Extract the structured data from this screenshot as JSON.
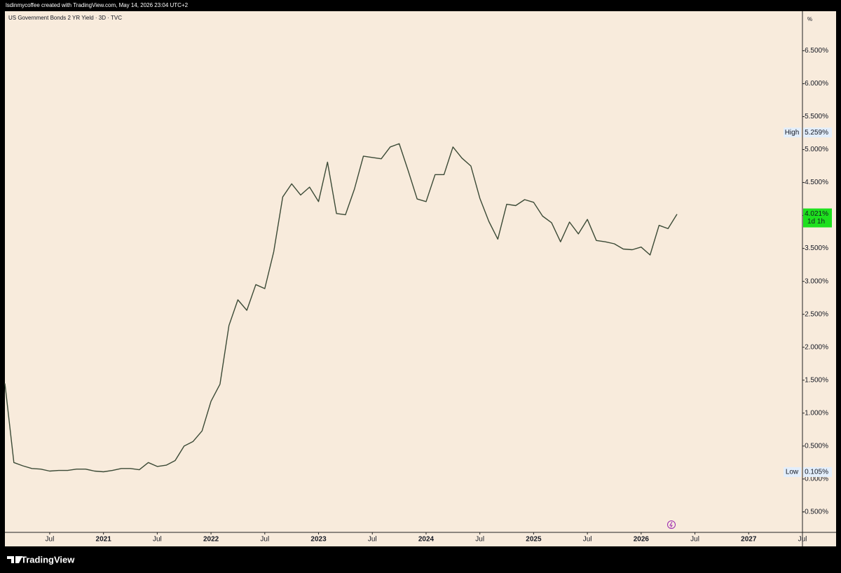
{
  "header": "lsdinmycoffee created with TradingView.com, May 14, 2026 23:04 UTC+2",
  "footer": "TradingView",
  "chart_data": {
    "type": "line",
    "title": "US Government Bonds 2 YR Yield · 3D · TVC",
    "unit_label": "%",
    "color": "#3b4a36",
    "grid": false,
    "x": [
      "2020-02",
      "2020-03",
      "2020-04",
      "2020-05",
      "2020-06",
      "2020-07",
      "2020-08",
      "2020-09",
      "2020-10",
      "2020-11",
      "2020-12",
      "2021-01",
      "2021-02",
      "2021-03",
      "2021-04",
      "2021-05",
      "2021-06",
      "2021-07",
      "2021-08",
      "2021-09",
      "2021-10",
      "2021-11",
      "2021-12",
      "2022-01",
      "2022-02",
      "2022-03",
      "2022-04",
      "2022-05",
      "2022-06",
      "2022-07",
      "2022-08",
      "2022-09",
      "2022-10",
      "2022-11",
      "2022-12",
      "2023-01",
      "2023-02",
      "2023-03",
      "2023-04",
      "2023-05",
      "2023-06",
      "2023-07",
      "2023-08",
      "2023-09",
      "2023-10",
      "2023-11",
      "2023-12",
      "2024-01",
      "2024-02",
      "2024-03",
      "2024-04",
      "2024-05",
      "2024-06",
      "2024-07",
      "2024-08",
      "2024-09",
      "2024-10",
      "2024-11",
      "2024-12",
      "2025-01",
      "2025-02",
      "2025-03",
      "2025-04",
      "2025-05",
      "2025-06",
      "2025-07",
      "2025-08",
      "2025-09",
      "2025-10",
      "2025-11",
      "2025-12",
      "2026-01",
      "2026-02",
      "2026-03",
      "2026-04",
      "2026-05"
    ],
    "values": [
      1.45,
      0.25,
      0.2,
      0.16,
      0.15,
      0.12,
      0.13,
      0.13,
      0.15,
      0.15,
      0.12,
      0.11,
      0.13,
      0.16,
      0.16,
      0.14,
      0.25,
      0.19,
      0.21,
      0.28,
      0.5,
      0.57,
      0.73,
      1.18,
      1.44,
      2.33,
      2.72,
      2.56,
      2.95,
      2.89,
      3.45,
      4.28,
      4.48,
      4.31,
      4.43,
      4.21,
      4.81,
      4.03,
      4.01,
      4.4,
      4.9,
      4.88,
      4.86,
      5.04,
      5.09,
      4.68,
      4.25,
      4.21,
      4.62,
      4.62,
      5.04,
      4.87,
      4.75,
      4.26,
      3.91,
      3.64,
      4.17,
      4.15,
      4.24,
      4.2,
      3.99,
      3.89,
      3.6,
      3.9,
      3.72,
      3.94,
      3.62,
      3.6,
      3.57,
      3.49,
      3.48,
      3.52,
      3.4,
      3.85,
      3.8,
      4.02
    ],
    "xlim": [
      "2020-02",
      "2027-07"
    ],
    "xticks": [
      {
        "value": "2020-07",
        "label": "Jul"
      },
      {
        "value": "2021-01",
        "label": "2021"
      },
      {
        "value": "2021-07",
        "label": "Jul"
      },
      {
        "value": "2022-01",
        "label": "2022"
      },
      {
        "value": "2022-07",
        "label": "Jul"
      },
      {
        "value": "2023-01",
        "label": "2023"
      },
      {
        "value": "2023-07",
        "label": "Jul"
      },
      {
        "value": "2024-01",
        "label": "2024"
      },
      {
        "value": "2024-07",
        "label": "Jul"
      },
      {
        "value": "2025-01",
        "label": "2025"
      },
      {
        "value": "2025-07",
        "label": "Jul"
      },
      {
        "value": "2026-01",
        "label": "2026"
      },
      {
        "value": "2026-07",
        "label": "Jul"
      },
      {
        "value": "2027-01",
        "label": "2027"
      },
      {
        "value": "2027-07",
        "label": "Jul"
      }
    ],
    "ylim": [
      -0.81,
      7.1
    ],
    "yticks": [
      {
        "value": -0.5,
        "label": "-0.500%"
      },
      {
        "value": 0,
        "label": "0.000%"
      },
      {
        "value": 0.5,
        "label": "0.500%"
      },
      {
        "value": 1,
        "label": "1.000%"
      },
      {
        "value": 1.5,
        "label": "1.500%"
      },
      {
        "value": 2,
        "label": "2.000%"
      },
      {
        "value": 2.5,
        "label": "2.500%"
      },
      {
        "value": 3,
        "label": "3.000%"
      },
      {
        "value": 3.5,
        "label": "3.500%"
      },
      {
        "value": 4,
        "label": "4.000%"
      },
      {
        "value": 4.5,
        "label": "4.500%"
      },
      {
        "value": 5,
        "label": "5.000%"
      },
      {
        "value": 5.5,
        "label": "5.500%"
      },
      {
        "value": 6,
        "label": "6.000%"
      },
      {
        "value": 6.5,
        "label": "6.500%"
      }
    ],
    "high_low": [
      {
        "name": "High",
        "value": 5.259,
        "value_label": "5.259%"
      },
      {
        "name": "Low",
        "value": 0.105,
        "value_label": "0.105%"
      }
    ],
    "last": {
      "value": 4.021,
      "value_label": "4.021%",
      "countdown": "1d 1h",
      "color": "#1ee01e"
    }
  }
}
